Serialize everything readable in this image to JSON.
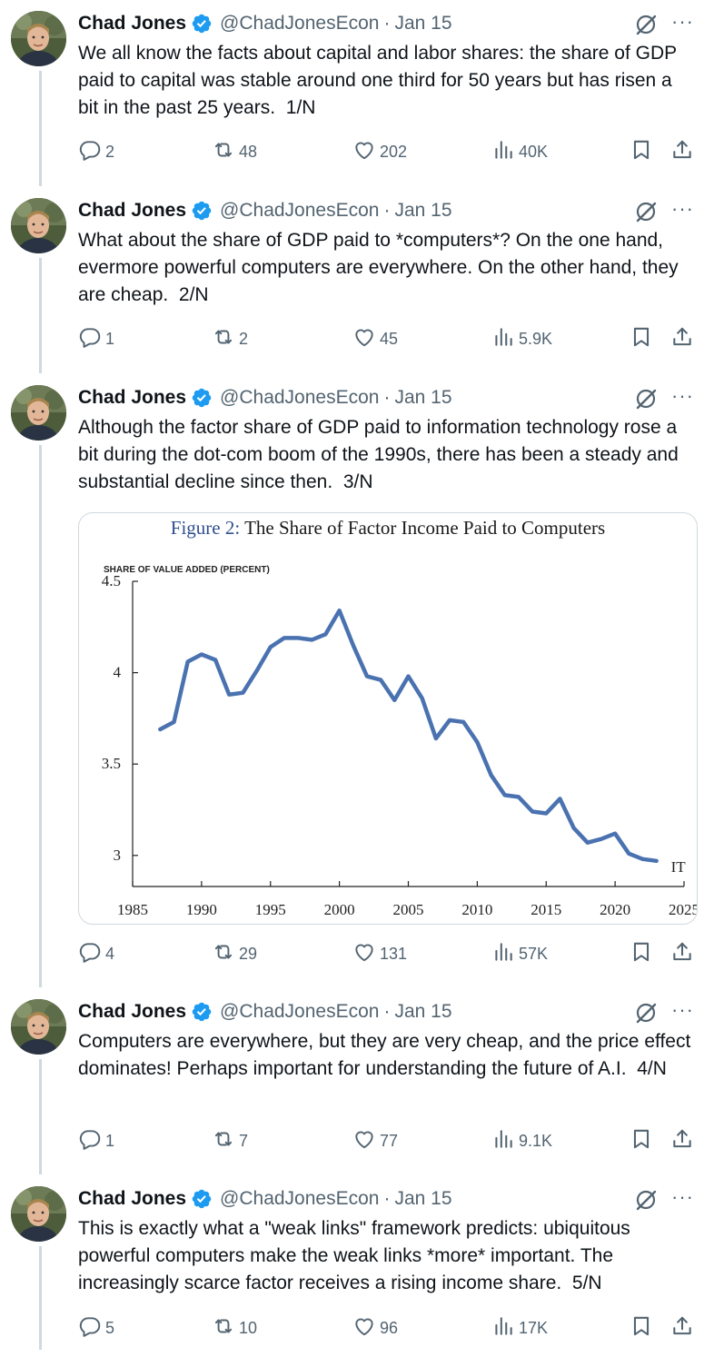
{
  "tweets": [
    {
      "name": "Chad Jones",
      "handle": "@ChadJonesEcon",
      "date": "Jan 15",
      "text": "We all know the facts about capital and labor shares: the share of GDP paid to capital was stable around one third for 50 years but has risen a bit in the past 25 years.  1/N",
      "replies": "2",
      "retweets": "48",
      "likes": "202",
      "views": "40K"
    },
    {
      "name": "Chad Jones",
      "handle": "@ChadJonesEcon",
      "date": "Jan 15",
      "text": "What about the share of GDP paid to *computers*? On the one hand, evermore powerful computers are everywhere. On the other hand, they are cheap.  2/N",
      "replies": "1",
      "retweets": "2",
      "likes": "45",
      "views": "5.9K"
    },
    {
      "name": "Chad Jones",
      "handle": "@ChadJonesEcon",
      "date": "Jan 15",
      "text": "Although the factor share of GDP paid to information technology rose a bit during the dot-com boom of the 1990s, there has been a steady and substantial decline since then.  3/N",
      "replies": "4",
      "retweets": "29",
      "likes": "131",
      "views": "57K"
    },
    {
      "name": "Chad Jones",
      "handle": "@ChadJonesEcon",
      "date": "Jan 15",
      "text": "Computers are everywhere, but they are very cheap, and the price effect dominates! Perhaps important for understanding the future of A.I.  4/N",
      "replies": "1",
      "retweets": "7",
      "likes": "77",
      "views": "9.1K"
    },
    {
      "name": "Chad Jones",
      "handle": "@ChadJonesEcon",
      "date": "Jan 15",
      "text": "This is exactly what a \"weak links\" framework predicts: ubiquitous powerful computers make the weak links *more* important. The increasingly scarce factor receives a rising income share.  5/N",
      "replies": "5",
      "retweets": "10",
      "likes": "96",
      "views": "17K"
    }
  ],
  "chart_data": {
    "type": "line",
    "figure_label": "Figure 2:",
    "title": "The Share of Factor Income Paid to Computers",
    "ylabel": "SHARE OF VALUE ADDED (PERCENT)",
    "xlabel": "",
    "xlim": [
      1985,
      2025
    ],
    "ylim": [
      2.83,
      4.5
    ],
    "xticks": [
      "1985",
      "1990",
      "1995",
      "2000",
      "2005",
      "2010",
      "2015",
      "2020",
      "2025"
    ],
    "yticks": [
      "3",
      "3.5",
      "4",
      "4.5"
    ],
    "grid": false,
    "series": [
      {
        "name": "IT",
        "color": "#4a72b0",
        "x": [
          1987,
          1988,
          1989,
          1990,
          1991,
          1992,
          1993,
          1994,
          1995,
          1996,
          1997,
          1998,
          1999,
          2000,
          2001,
          2002,
          2003,
          2004,
          2005,
          2006,
          2007,
          2008,
          2009,
          2010,
          2011,
          2012,
          2013,
          2014,
          2015,
          2016,
          2017,
          2018,
          2019,
          2020,
          2021,
          2022,
          2023
        ],
        "values": [
          3.69,
          3.73,
          4.06,
          4.1,
          4.07,
          3.88,
          3.89,
          4.01,
          4.14,
          4.19,
          4.19,
          4.18,
          4.21,
          4.34,
          4.15,
          3.98,
          3.96,
          3.85,
          3.98,
          3.86,
          3.64,
          3.74,
          3.73,
          3.62,
          3.44,
          3.33,
          3.32,
          3.24,
          3.23,
          3.31,
          3.15,
          3.07,
          3.09,
          3.12,
          3.01,
          2.98,
          2.97
        ]
      }
    ]
  }
}
